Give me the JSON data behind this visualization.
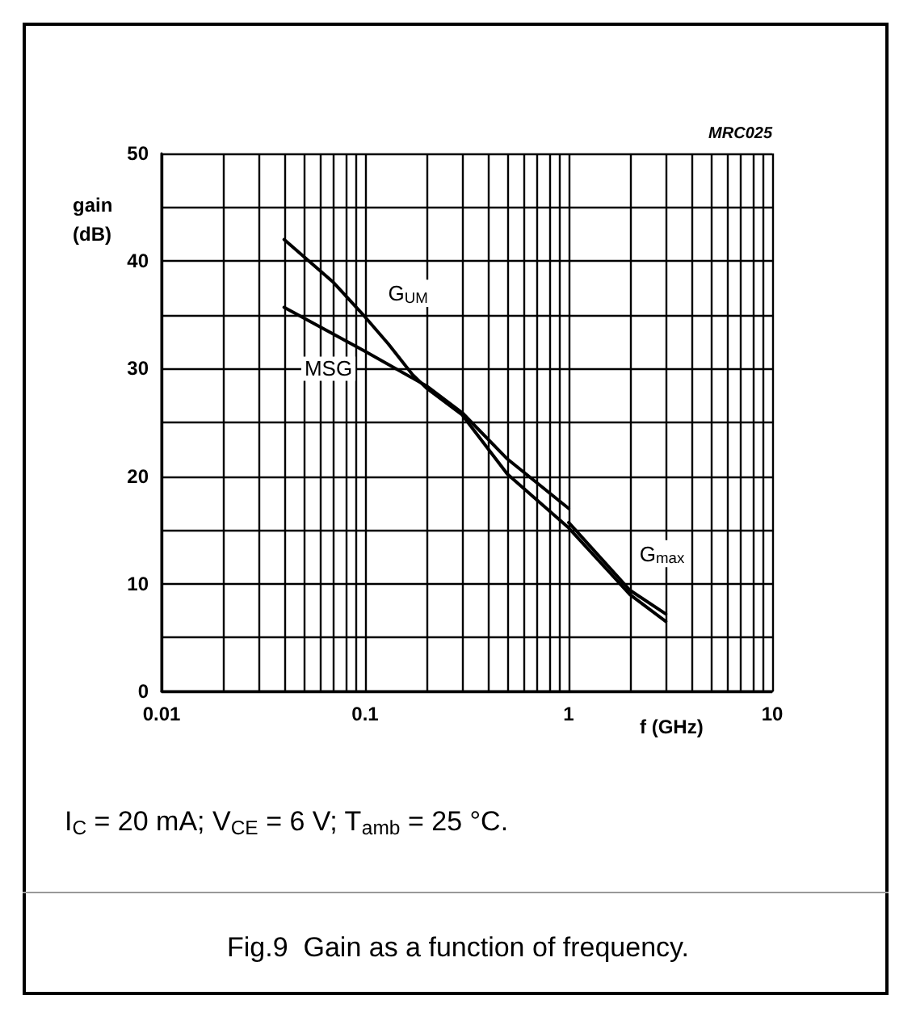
{
  "chart_data": {
    "type": "line",
    "title": "Fig.9  Gain as a function of frequency.",
    "xlabel": "f (GHz)",
    "ylabel": "gain\n(dB)",
    "annotations": [
      "MRC025",
      "I$_{C}$ = 20 mA; V$_{CE}$ = 6 V; T$_{amb}$ = 25 °C."
    ],
    "log": "x",
    "grid": true,
    "legend": false,
    "marker": "none",
    "line_style": "solid",
    "xlim": [
      0.01,
      10
    ],
    "xticks": [
      0.01,
      {
        "value": 0.02,
        "label": null
      },
      {
        "value": 0.03,
        "label": null
      },
      {
        "value": 0.04,
        "label": null
      },
      {
        "value": 0.05,
        "label": null
      },
      {
        "value": 0.06,
        "label": null
      },
      {
        "value": 0.07,
        "label": null
      },
      {
        "value": 0.08,
        "label": null
      },
      {
        "value": 0.09,
        "label": null
      },
      0.1,
      {
        "value": 0.2,
        "label": null
      },
      {
        "value": 0.3,
        "label": null
      },
      {
        "value": 0.4,
        "label": null
      },
      {
        "value": 0.5,
        "label": null
      },
      {
        "value": 0.6,
        "label": null
      },
      {
        "value": 0.7,
        "label": null
      },
      {
        "value": 0.8,
        "label": null
      },
      {
        "value": 0.9,
        "label": null
      },
      1,
      {
        "value": 2,
        "label": null
      },
      {
        "value": 3,
        "label": null
      },
      {
        "value": 4,
        "label": null
      },
      {
        "value": 5,
        "label": null
      },
      {
        "value": 6,
        "label": null
      },
      {
        "value": 7,
        "label": null
      },
      {
        "value": 8,
        "label": null
      },
      {
        "value": 9,
        "label": null
      },
      10
    ],
    "ylim": [
      0,
      50
    ],
    "yticks": [
      0,
      {
        "value": 5,
        "label": null
      },
      10,
      {
        "value": 15,
        "label": null
      },
      20,
      {
        "value": 25,
        "label": null
      },
      30,
      {
        "value": 35,
        "label": null
      },
      40,
      {
        "value": 45,
        "label": null
      },
      50
    ],
    "series": [
      {
        "name": "G$_{UM}$",
        "color": "#000000",
        "x": [
          0.04,
          0.07,
          0.1,
          0.13,
          0.17,
          0.2,
          0.3,
          0.5,
          1,
          2,
          3
        ],
        "values": [
          42,
          38,
          34.8,
          32.3,
          29.5,
          28.2,
          25.7,
          20.2,
          15.2,
          9,
          6.5
        ]
      },
      {
        "name": "MSG",
        "color": "#000000",
        "x": [
          0.04,
          0.1,
          0.2,
          0.3,
          0.5,
          1
        ],
        "values": [
          35.7,
          31.6,
          28.4,
          25.9,
          21.6,
          17
        ]
      },
      {
        "name": "G$_{max}$",
        "color": "#000000",
        "x": [
          1,
          2,
          3
        ],
        "values": [
          15.7,
          9.4,
          7.2
        ]
      }
    ]
  }
}
